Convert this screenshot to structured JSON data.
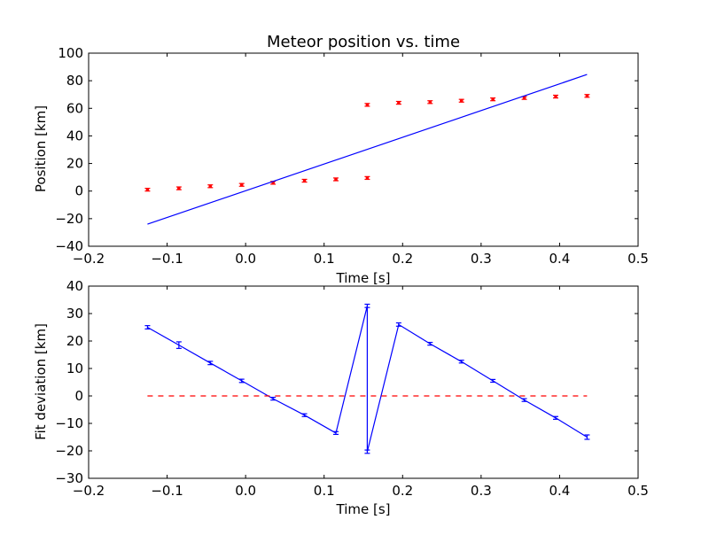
{
  "chart_data": [
    {
      "type": "scatter",
      "title": "Meteor position vs. time",
      "xlabel": "Time [s]",
      "ylabel": "Position [km]",
      "xlim": [
        -0.2,
        0.5
      ],
      "ylim": [
        -40,
        100
      ],
      "xticks": [
        "−0.2",
        "−0.1",
        "0.0",
        "0.1",
        "0.2",
        "0.3",
        "0.4",
        "0.5"
      ],
      "yticks": [
        "−40",
        "−20",
        "0",
        "20",
        "40",
        "60",
        "80",
        "100"
      ],
      "grid": false,
      "series": [
        {
          "style": "points-with-errorbars",
          "color": "#ff0000",
          "x": [
            -0.125,
            -0.085,
            -0.045,
            -0.005,
            0.035,
            0.075,
            0.115,
            0.155,
            0.155,
            0.195,
            0.235,
            0.275,
            0.315,
            0.355,
            0.395,
            0.435
          ],
          "y": [
            1,
            2,
            3.5,
            4.5,
            6,
            7.5,
            8.5,
            9.5,
            62.5,
            64,
            64.5,
            65.5,
            66.5,
            67.5,
            68.5,
            69
          ],
          "err": [
            1,
            1,
            1,
            1,
            1,
            1,
            1,
            1,
            1,
            1,
            1,
            1,
            1,
            1,
            1,
            1
          ]
        },
        {
          "style": "line",
          "color": "#0000ff",
          "x": [
            -0.125,
            0.435
          ],
          "y": [
            -24,
            84.5
          ]
        }
      ]
    },
    {
      "type": "line",
      "title": "",
      "xlabel": "Time [s]",
      "ylabel": "Fit deviation [km]",
      "xlim": [
        -0.2,
        0.5
      ],
      "ylim": [
        -30,
        40
      ],
      "xticks": [
        "−0.2",
        "−0.1",
        "0.0",
        "0.1",
        "0.2",
        "0.3",
        "0.4",
        "0.5"
      ],
      "yticks": [
        "−30",
        "−20",
        "−10",
        "0",
        "10",
        "20",
        "30",
        "40"
      ],
      "grid": false,
      "series": [
        {
          "style": "line-with-errorbars",
          "color": "#0000ff",
          "x": [
            -0.125,
            -0.085,
            -0.045,
            -0.005,
            0.035,
            0.075,
            0.115,
            0.155,
            0.155,
            0.195,
            0.235,
            0.275,
            0.315,
            0.355,
            0.395,
            0.435
          ],
          "y": [
            25,
            18.5,
            12,
            5.5,
            -1,
            -7,
            -13.5,
            32.8,
            -20.3,
            26,
            19,
            12.5,
            5.5,
            -1.5,
            -8,
            -15
          ],
          "err": [
            0.6,
            1.2,
            0.6,
            0.6,
            0.5,
            0.5,
            0.5,
            0.6,
            0.6,
            0.6,
            0.5,
            0.5,
            0.5,
            0.5,
            0.5,
            0.8
          ]
        },
        {
          "style": "dashed-line",
          "color": "#ff0000",
          "x": [
            -0.125,
            0.435
          ],
          "y": [
            0,
            0
          ]
        }
      ]
    }
  ]
}
